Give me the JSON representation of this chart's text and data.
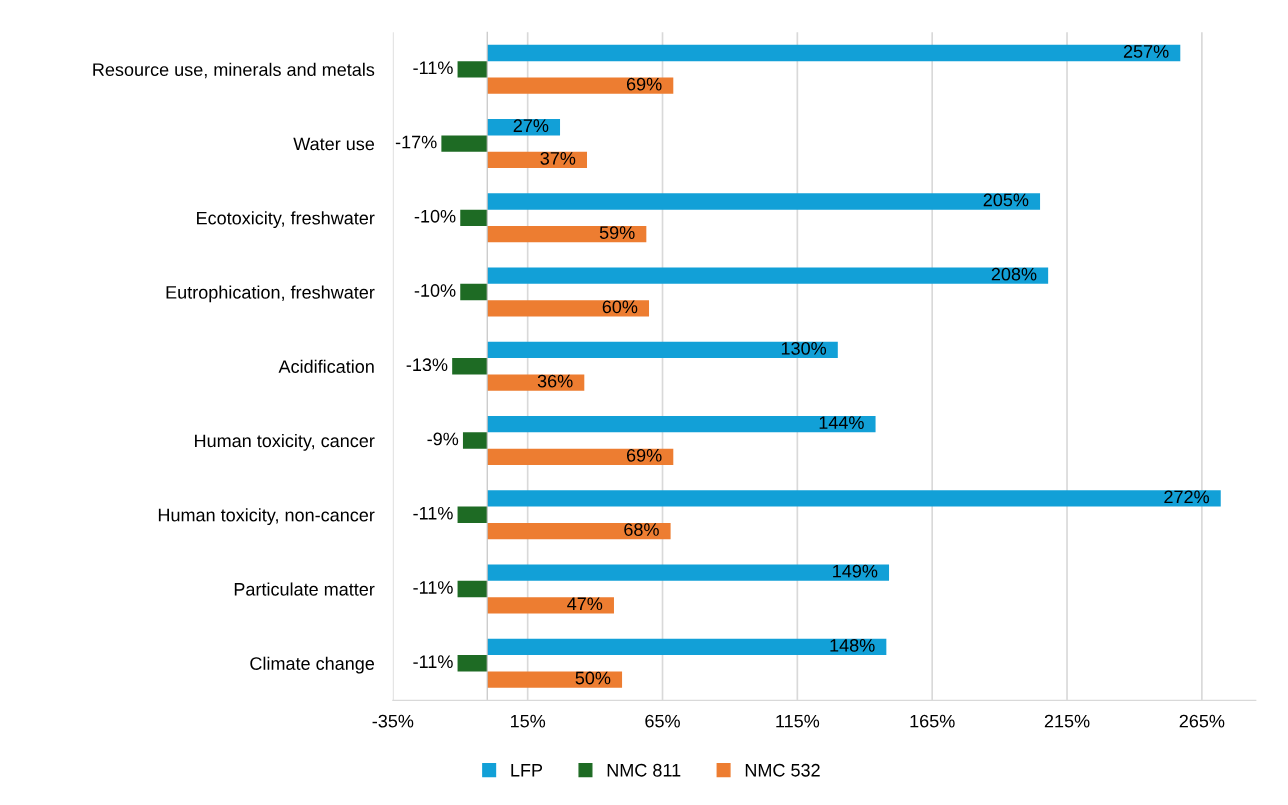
{
  "chart_data": {
    "type": "bar",
    "orientation": "horizontal",
    "categories": [
      "Resource use, minerals and metals",
      "Water use",
      "Ecotoxicity, freshwater",
      "Eutrophication, freshwater",
      "Acidification",
      "Human toxicity, cancer",
      "Human toxicity, non-cancer",
      "Particulate matter",
      "Climate change"
    ],
    "series": [
      {
        "name": "LFP",
        "color": "#12a0d7",
        "values": [
          257,
          27,
          205,
          208,
          130,
          144,
          272,
          149,
          148
        ],
        "value_labels": [
          "257%",
          "27%",
          "205%",
          "208%",
          "130%",
          "144%",
          "272%",
          "149%",
          "148%"
        ]
      },
      {
        "name": "NMC 811",
        "color": "#1e6b24",
        "values": [
          -11,
          -17,
          -10,
          -10,
          -13,
          -9,
          -11,
          -11,
          -11
        ],
        "value_labels": [
          "-11%",
          "-17%",
          "-10%",
          "-10%",
          "-13%",
          "-9%",
          "-11%",
          "-11%",
          "-11%"
        ]
      },
      {
        "name": "NMC 532",
        "color": "#ed7d31",
        "values": [
          69,
          37,
          59,
          60,
          36,
          69,
          68,
          47,
          50
        ],
        "value_labels": [
          "69%",
          "37%",
          "59%",
          "60%",
          "36%",
          "69%",
          "68%",
          "47%",
          "50%"
        ]
      }
    ],
    "xlim": [
      -35,
      285
    ],
    "xticks": [
      {
        "value": -35,
        "label": "-35%"
      },
      {
        "value": 15,
        "label": "15%"
      },
      {
        "value": 65,
        "label": "65%"
      },
      {
        "value": 115,
        "label": "115%"
      },
      {
        "value": 165,
        "label": "165%"
      },
      {
        "value": 215,
        "label": "215%"
      },
      {
        "value": 265,
        "label": "265%"
      }
    ],
    "grid": "x",
    "legend": "bottom"
  }
}
